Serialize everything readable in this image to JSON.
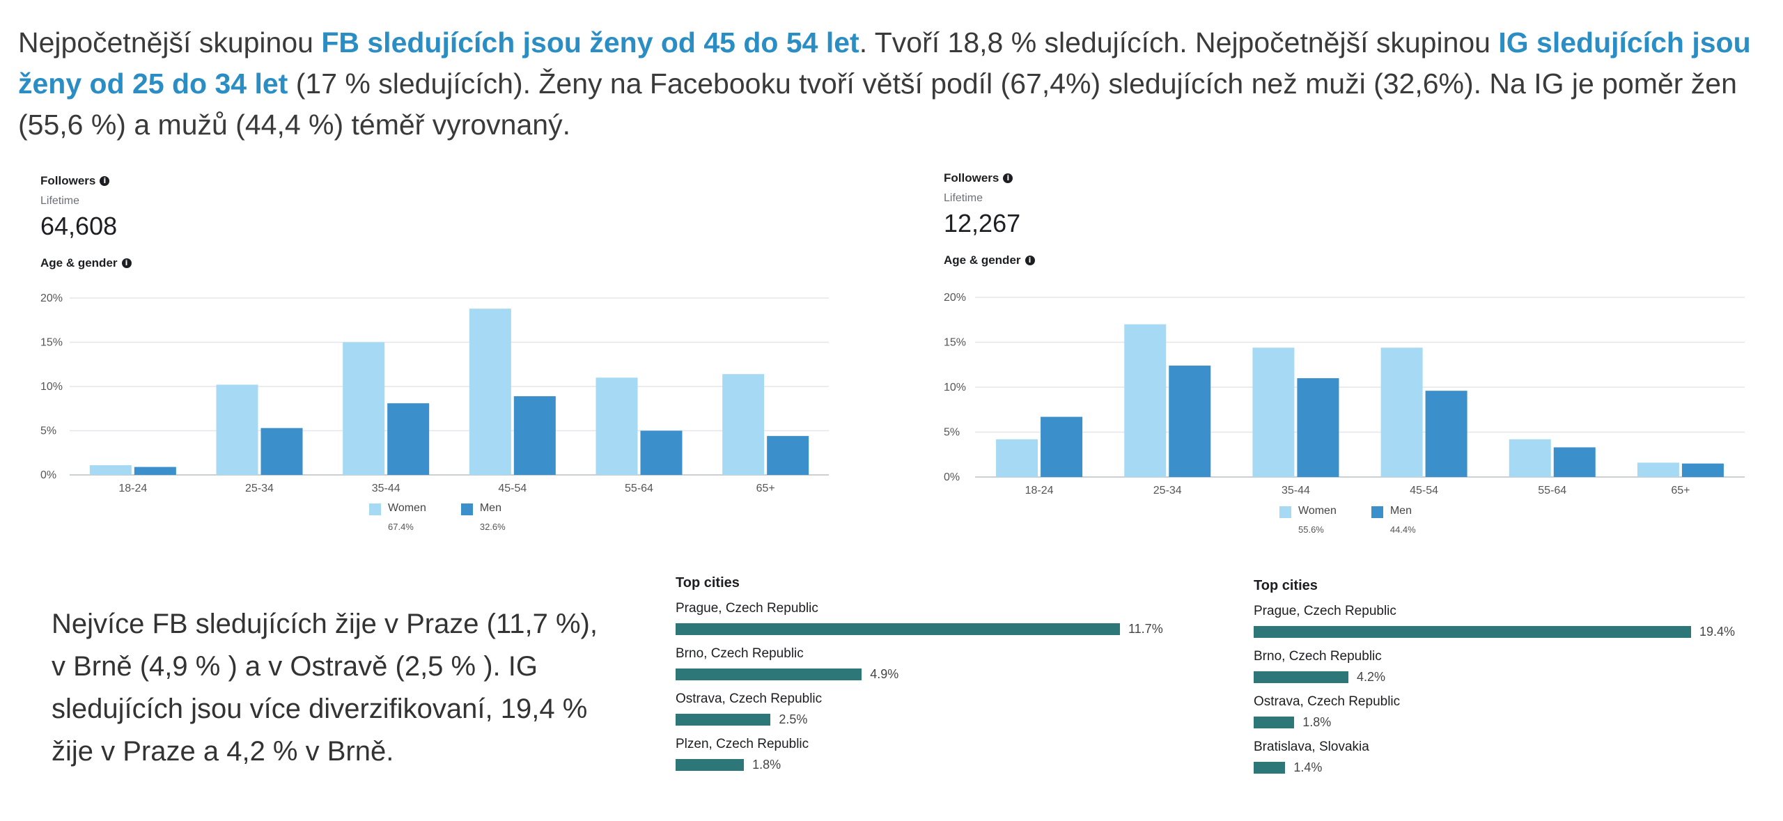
{
  "intro": {
    "p1": "Nejpočetnější skupinou ",
    "h1": "FB sledujících jsou ženy od 45 do 54 let",
    "p2": ". Tvoří 18,8 % sledujících. Nejpočetnější skupinou ",
    "h2": "IG sledujících jsou ženy od 25 do 34 let",
    "p3": " (17 % sledujících). Ženy na Facebooku tvoří větší podíl (67,4%) sledujících než muži (32,6%). Na IG je poměr žen (55,6 %) a mužů (44,4 %) téměř vyrovnaný."
  },
  "fb_panel": {
    "followers_label": "Followers",
    "info_icon": "i",
    "lifetime_label": "Lifetime",
    "followers_count": "64,608",
    "age_gender_label": "Age & gender"
  },
  "ig_panel": {
    "followers_label": "Followers",
    "info_icon": "i",
    "lifetime_label": "Lifetime",
    "followers_count": "12,267",
    "age_gender_label": "Age & gender"
  },
  "cities_text": "Nejvíce FB sledujících žije v  Praze (11,7 %), v Brně  (4,9 % ) a v Ostravě (2,5 % ). IG sledujících jsou více diverzifikovaní, 19,4 % žije v Praze a 4,2 % v Brně.",
  "colors": {
    "women": "#a6daf4",
    "men": "#3b8fcb",
    "city_bar": "#2e7778",
    "highlight": "#2a8ec4"
  },
  "chart_data": [
    {
      "type": "bar",
      "categories": [
        "18-24",
        "25-34",
        "35-44",
        "45-54",
        "55-64",
        "65+"
      ],
      "series": [
        {
          "name": "Women",
          "values": [
            1.1,
            10.2,
            15.0,
            18.8,
            11.0,
            11.4
          ]
        },
        {
          "name": "Men",
          "values": [
            0.9,
            5.3,
            8.1,
            8.9,
            5.0,
            4.4
          ]
        }
      ],
      "legend": [
        {
          "name": "Women",
          "pct": "67.4%"
        },
        {
          "name": "Men",
          "pct": "32.6%"
        }
      ],
      "yticks": [
        "0%",
        "5%",
        "10%",
        "15%",
        "20%"
      ],
      "ylim": [
        0,
        20
      ],
      "grid": true,
      "legend_position": "bottom"
    },
    {
      "type": "bar",
      "categories": [
        "18-24",
        "25-34",
        "35-44",
        "45-54",
        "55-64",
        "65+"
      ],
      "series": [
        {
          "name": "Women",
          "values": [
            4.2,
            17.0,
            14.4,
            14.4,
            4.2,
            1.6
          ]
        },
        {
          "name": "Men",
          "values": [
            6.7,
            12.4,
            11.0,
            9.6,
            3.3,
            1.5
          ]
        }
      ],
      "legend": [
        {
          "name": "Women",
          "pct": "55.6%"
        },
        {
          "name": "Men",
          "pct": "44.4%"
        }
      ],
      "yticks": [
        "0%",
        "5%",
        "10%",
        "15%",
        "20%"
      ],
      "ylim": [
        0,
        20
      ],
      "grid": true,
      "legend_position": "bottom"
    },
    {
      "type": "bar",
      "title": "Top cities",
      "orientation": "horizontal",
      "categories": [
        "Prague, Czech Republic",
        "Brno, Czech Republic",
        "Ostrava, Czech Republic",
        "Plzen, Czech Republic"
      ],
      "values": [
        11.7,
        4.9,
        2.5,
        1.8
      ],
      "labels": [
        "11.7%",
        "4.9%",
        "2.5%",
        "1.8%"
      ]
    },
    {
      "type": "bar",
      "title": "Top cities",
      "orientation": "horizontal",
      "categories": [
        "Prague, Czech Republic",
        "Brno, Czech Republic",
        "Ostrava, Czech Republic",
        "Bratislava, Slovakia"
      ],
      "values": [
        19.4,
        4.2,
        1.8,
        1.4
      ],
      "labels": [
        "19.4%",
        "4.2%",
        "1.8%",
        "1.4%"
      ]
    }
  ]
}
